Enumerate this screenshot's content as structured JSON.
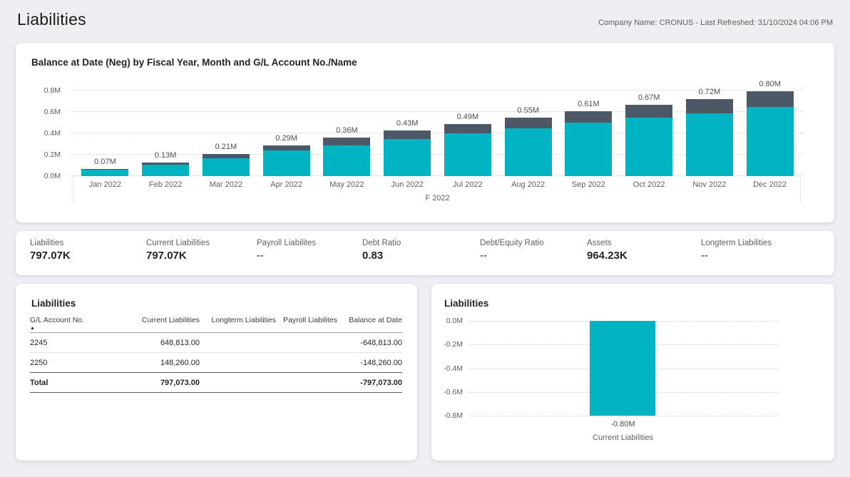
{
  "page": {
    "title": "Liabilities",
    "meta": "Company Name: CRONUS - Last Refreshed: 31/10/2024 04:06 PM"
  },
  "colors": {
    "teal": "#00b3c2",
    "slate": "#4c5866",
    "background": "#edeff2",
    "card": "#ffffff"
  },
  "chart_data": [
    {
      "type": "bar",
      "stacked": true,
      "title": "Balance at Date (Neg) by Fiscal Year, Month and G/L Account No./Name",
      "categories": [
        "Jan 2022",
        "Feb 2022",
        "Mar 2022",
        "Apr 2022",
        "May 2022",
        "Jun 2022",
        "Jul 2022",
        "Aug 2022",
        "Sep 2022",
        "Oct 2022",
        "Nov 2022",
        "Dec 2022"
      ],
      "series": [
        {
          "name": "2245",
          "color": "#00b3c2",
          "values": [
            0.06,
            0.11,
            0.17,
            0.24,
            0.29,
            0.35,
            0.4,
            0.45,
            0.5,
            0.55,
            0.59,
            0.65
          ]
        },
        {
          "name": "2250",
          "color": "#4c5866",
          "values": [
            0.01,
            0.02,
            0.04,
            0.05,
            0.07,
            0.08,
            0.09,
            0.1,
            0.11,
            0.12,
            0.13,
            0.15
          ]
        }
      ],
      "total_labels": [
        "0.07M",
        "0.13M",
        "0.21M",
        "0.29M",
        "0.36M",
        "0.43M",
        "0.49M",
        "0.55M",
        "0.61M",
        "0.67M",
        "0.72M",
        "0.80M"
      ],
      "y_ticks": [
        "0.0M",
        "0.2M",
        "0.4M",
        "0.6M",
        "0.8M"
      ],
      "ylim": [
        0,
        0.9
      ],
      "unit": "M",
      "axis_group_label": "F 2022",
      "grid": "dotted horizontal"
    },
    {
      "type": "bar",
      "title": "Liabilities",
      "categories": [
        "Current Liabilities"
      ],
      "values": [
        -0.8
      ],
      "data_labels": [
        "-0.80M"
      ],
      "y_ticks": [
        "0.0M",
        "-0.2M",
        "-0.4M",
        "-0.6M",
        "-0.8M"
      ],
      "ylim": [
        -0.9,
        0
      ],
      "unit": "M",
      "color": "#00b3c2",
      "grid": "dotted horizontal"
    }
  ],
  "kpis": [
    {
      "label": "Liabilities",
      "value": "797.07K"
    },
    {
      "label": "Current Liabilities",
      "value": "797.07K"
    },
    {
      "label": "Payroll Liabilites",
      "value": "--"
    },
    {
      "label": "Debt Ratio",
      "value": "0.83"
    },
    {
      "label": "Debt/Equity Ratio",
      "value": "--"
    },
    {
      "label": "Assets",
      "value": "964.23K"
    },
    {
      "label": "Longterm Liabilities",
      "value": "--"
    }
  ],
  "table": {
    "title": "Liabilities",
    "columns": [
      "G/L Account No.",
      "Current Liabilities",
      "Longterm Liabilities",
      "Payroll Liabilites",
      "Balance at Date"
    ],
    "sorted_column": "G/L Account No.",
    "sort_direction": "ascending",
    "rows": [
      [
        "2245",
        "648,813.00",
        "",
        "",
        "-648,813.00"
      ],
      [
        "2250",
        "148,260.00",
        "",
        "",
        "-148,260.00"
      ]
    ],
    "total": [
      "Total",
      "797,073.00",
      "",
      "",
      "-797,073.00"
    ]
  }
}
